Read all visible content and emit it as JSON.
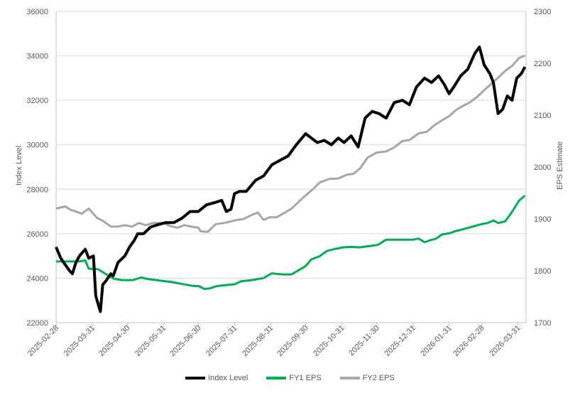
{
  "chart_data": {
    "type": "line",
    "y_left": {
      "label": "Index Level",
      "ylim": [
        22000,
        36000
      ],
      "ticks": [
        "22000",
        "24000",
        "26000",
        "28000",
        "30000",
        "32000",
        "34000",
        "36000"
      ]
    },
    "y_right": {
      "label": "EPS Estimate",
      "ylim": [
        1700,
        2300
      ],
      "ticks": [
        "1700",
        "1800",
        "1900",
        "2000",
        "2100",
        "2200",
        "2300"
      ]
    },
    "x_ticks": [
      "2025-02-28",
      "2025-03-31",
      "2025-04-30",
      "2025-05-31",
      "2025-06-30",
      "2025-07-31",
      "2025-08-31",
      "2025-09-30",
      "2025-10-31",
      "2025-11-30",
      "2025-12-31",
      "2026-01-31",
      "2026-02-28",
      "2026-03-31"
    ],
    "grid": "horizontal",
    "legend": "bottom",
    "series": [
      {
        "name": "Index Level",
        "axis": "left",
        "color": "#000000",
        "points": [
          [
            "2025-02-28",
            25400
          ],
          [
            "2025-03-04",
            24900
          ],
          [
            "2025-03-08",
            24600
          ],
          [
            "2025-03-12",
            24300
          ],
          [
            "2025-03-14",
            24200
          ],
          [
            "2025-03-17",
            24700
          ],
          [
            "2025-03-20",
            25000
          ],
          [
            "2025-03-25",
            25300
          ],
          [
            "2025-03-28",
            24900
          ],
          [
            "2025-04-01",
            25000
          ],
          [
            "2025-04-03",
            23200
          ],
          [
            "2025-04-07",
            22500
          ],
          [
            "2025-04-09",
            23700
          ],
          [
            "2025-04-12",
            23900
          ],
          [
            "2025-04-16",
            24200
          ],
          [
            "2025-04-18",
            24100
          ],
          [
            "2025-04-22",
            24700
          ],
          [
            "2025-04-28",
            25000
          ],
          [
            "2025-05-02",
            25400
          ],
          [
            "2025-05-06",
            25700
          ],
          [
            "2025-05-09",
            26000
          ],
          [
            "2025-05-14",
            26000
          ],
          [
            "2025-05-20",
            26300
          ],
          [
            "2025-05-26",
            26400
          ],
          [
            "2025-06-02",
            26500
          ],
          [
            "2025-06-09",
            26500
          ],
          [
            "2025-06-16",
            26700
          ],
          [
            "2025-06-23",
            27000
          ],
          [
            "2025-06-30",
            27000
          ],
          [
            "2025-07-07",
            27300
          ],
          [
            "2025-07-14",
            27400
          ],
          [
            "2025-07-20",
            27500
          ],
          [
            "2025-07-24",
            27000
          ],
          [
            "2025-07-28",
            27100
          ],
          [
            "2025-07-31",
            27800
          ],
          [
            "2025-08-04",
            27900
          ],
          [
            "2025-08-10",
            27900
          ],
          [
            "2025-08-18",
            28400
          ],
          [
            "2025-08-25",
            28600
          ],
          [
            "2025-09-01",
            29100
          ],
          [
            "2025-09-08",
            29300
          ],
          [
            "2025-09-15",
            29500
          ],
          [
            "2025-09-22",
            30000
          ],
          [
            "2025-09-30",
            30500
          ],
          [
            "2025-10-05",
            30300
          ],
          [
            "2025-10-10",
            30100
          ],
          [
            "2025-10-16",
            30200
          ],
          [
            "2025-10-22",
            30000
          ],
          [
            "2025-10-28",
            30300
          ],
          [
            "2025-11-02",
            30100
          ],
          [
            "2025-11-08",
            30400
          ],
          [
            "2025-11-14",
            29900
          ],
          [
            "2025-11-20",
            31200
          ],
          [
            "2025-11-26",
            31500
          ],
          [
            "2025-12-02",
            31400
          ],
          [
            "2025-12-08",
            31200
          ],
          [
            "2025-12-15",
            31900
          ],
          [
            "2025-12-22",
            32000
          ],
          [
            "2025-12-28",
            31800
          ],
          [
            "2026-01-03",
            32600
          ],
          [
            "2026-01-10",
            33000
          ],
          [
            "2026-01-16",
            32800
          ],
          [
            "2026-01-22",
            33100
          ],
          [
            "2026-01-27",
            32700
          ],
          [
            "2026-01-31",
            32300
          ],
          [
            "2026-02-04",
            32600
          ],
          [
            "2026-02-10",
            33100
          ],
          [
            "2026-02-16",
            33400
          ],
          [
            "2026-02-22",
            34100
          ],
          [
            "2026-02-26",
            34400
          ],
          [
            "2026-03-02",
            33600
          ],
          [
            "2026-03-07",
            33200
          ],
          [
            "2026-03-10",
            32800
          ],
          [
            "2026-03-14",
            31400
          ],
          [
            "2026-03-18",
            31600
          ],
          [
            "2026-03-22",
            32200
          ],
          [
            "2026-03-26",
            32000
          ],
          [
            "2026-03-30",
            33000
          ],
          [
            "2026-04-03",
            33200
          ],
          [
            "2026-04-06",
            33500
          ]
        ]
      },
      {
        "name": "FY1 EPS",
        "axis": "right",
        "color": "#00b050",
        "points": [
          [
            "2025-02-28",
            1818
          ],
          [
            "2025-03-10",
            1818
          ],
          [
            "2025-03-20",
            1818
          ],
          [
            "2025-03-25",
            1820
          ],
          [
            "2025-03-28",
            1804
          ],
          [
            "2025-04-05",
            1803
          ],
          [
            "2025-04-10",
            1796
          ],
          [
            "2025-04-18",
            1785
          ],
          [
            "2025-04-25",
            1782
          ],
          [
            "2025-05-05",
            1782
          ],
          [
            "2025-05-12",
            1787
          ],
          [
            "2025-05-18",
            1784
          ],
          [
            "2025-05-25",
            1782
          ],
          [
            "2025-06-01",
            1780
          ],
          [
            "2025-06-08",
            1778
          ],
          [
            "2025-06-15",
            1775
          ],
          [
            "2025-06-25",
            1771
          ],
          [
            "2025-07-01",
            1770
          ],
          [
            "2025-07-05",
            1765
          ],
          [
            "2025-07-10",
            1766
          ],
          [
            "2025-07-15",
            1770
          ],
          [
            "2025-07-22",
            1772
          ],
          [
            "2025-07-31",
            1774
          ],
          [
            "2025-08-06",
            1780
          ],
          [
            "2025-08-15",
            1782
          ],
          [
            "2025-08-25",
            1786
          ],
          [
            "2025-09-01",
            1795
          ],
          [
            "2025-09-10",
            1793
          ],
          [
            "2025-09-18",
            1793
          ],
          [
            "2025-09-30",
            1809
          ],
          [
            "2025-10-05",
            1822
          ],
          [
            "2025-10-12",
            1828
          ],
          [
            "2025-10-18",
            1838
          ],
          [
            "2025-10-25",
            1842
          ],
          [
            "2025-11-01",
            1845
          ],
          [
            "2025-11-08",
            1846
          ],
          [
            "2025-11-15",
            1845
          ],
          [
            "2025-11-25",
            1848
          ],
          [
            "2025-12-01",
            1850
          ],
          [
            "2025-12-08",
            1860
          ],
          [
            "2025-12-15",
            1860
          ],
          [
            "2025-12-25",
            1860
          ],
          [
            "2025-12-31",
            1860
          ],
          [
            "2026-01-05",
            1862
          ],
          [
            "2026-01-10",
            1855
          ],
          [
            "2026-01-15",
            1859
          ],
          [
            "2026-01-20",
            1862
          ],
          [
            "2026-01-25",
            1870
          ],
          [
            "2026-01-31",
            1872
          ],
          [
            "2026-02-05",
            1876
          ],
          [
            "2026-02-12",
            1880
          ],
          [
            "2026-02-20",
            1885
          ],
          [
            "2026-02-28",
            1890
          ],
          [
            "2026-03-05",
            1892
          ],
          [
            "2026-03-10",
            1897
          ],
          [
            "2026-03-14",
            1892
          ],
          [
            "2026-03-20",
            1895
          ],
          [
            "2026-03-25",
            1910
          ],
          [
            "2026-04-01",
            1935
          ],
          [
            "2026-04-06",
            1945
          ]
        ]
      },
      {
        "name": "FY2 EPS",
        "axis": "right",
        "color": "#a6a6a6",
        "points": [
          [
            "2025-02-28",
            1920
          ],
          [
            "2025-03-08",
            1924
          ],
          [
            "2025-03-12",
            1918
          ],
          [
            "2025-03-16",
            1915
          ],
          [
            "2025-03-22",
            1910
          ],
          [
            "2025-03-28",
            1920
          ],
          [
            "2025-04-04",
            1902
          ],
          [
            "2025-04-10",
            1895
          ],
          [
            "2025-04-16",
            1885
          ],
          [
            "2025-04-22",
            1885
          ],
          [
            "2025-04-28",
            1888
          ],
          [
            "2025-05-04",
            1885
          ],
          [
            "2025-05-10",
            1892
          ],
          [
            "2025-05-16",
            1888
          ],
          [
            "2025-05-22",
            1892
          ],
          [
            "2025-05-31",
            1892
          ],
          [
            "2025-06-06",
            1886
          ],
          [
            "2025-06-12",
            1883
          ],
          [
            "2025-06-18",
            1888
          ],
          [
            "2025-06-24",
            1885
          ],
          [
            "2025-06-30",
            1883
          ],
          [
            "2025-07-02",
            1876
          ],
          [
            "2025-07-08",
            1875
          ],
          [
            "2025-07-15",
            1890
          ],
          [
            "2025-07-22",
            1892
          ],
          [
            "2025-07-31",
            1897
          ],
          [
            "2025-08-08",
            1900
          ],
          [
            "2025-08-15",
            1908
          ],
          [
            "2025-08-20",
            1912
          ],
          [
            "2025-08-25",
            1898
          ],
          [
            "2025-08-30",
            1903
          ],
          [
            "2025-09-05",
            1903
          ],
          [
            "2025-09-12",
            1912
          ],
          [
            "2025-09-18",
            1920
          ],
          [
            "2025-09-25",
            1935
          ],
          [
            "2025-09-30",
            1945
          ],
          [
            "2025-10-06",
            1957
          ],
          [
            "2025-10-12",
            1970
          ],
          [
            "2025-10-20",
            1977
          ],
          [
            "2025-10-28",
            1978
          ],
          [
            "2025-11-04",
            1985
          ],
          [
            "2025-11-10",
            1987
          ],
          [
            "2025-11-16",
            1998
          ],
          [
            "2025-11-22",
            2018
          ],
          [
            "2025-11-30",
            2028
          ],
          [
            "2025-12-08",
            2030
          ],
          [
            "2025-12-15",
            2038
          ],
          [
            "2025-12-22",
            2050
          ],
          [
            "2025-12-28",
            2052
          ],
          [
            "2026-01-05",
            2065
          ],
          [
            "2026-01-12",
            2068
          ],
          [
            "2026-01-18",
            2080
          ],
          [
            "2026-01-25",
            2090
          ],
          [
            "2026-01-31",
            2098
          ],
          [
            "2026-02-06",
            2110
          ],
          [
            "2026-02-12",
            2118
          ],
          [
            "2026-02-18",
            2125
          ],
          [
            "2026-02-24",
            2135
          ],
          [
            "2026-03-02",
            2148
          ],
          [
            "2026-03-08",
            2160
          ],
          [
            "2026-03-14",
            2172
          ],
          [
            "2026-03-20",
            2185
          ],
          [
            "2026-03-26",
            2195
          ],
          [
            "2026-04-01",
            2210
          ],
          [
            "2026-04-06",
            2215
          ]
        ]
      }
    ]
  }
}
